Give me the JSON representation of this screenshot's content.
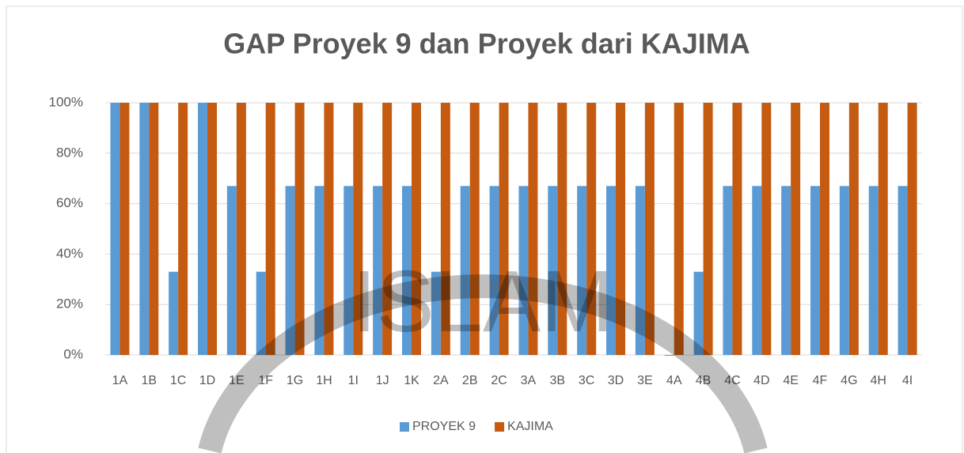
{
  "chart_data": {
    "type": "bar",
    "title": "GAP Proyek 9 dan Proyek dari KAJIMA",
    "categories": [
      "1A",
      "1B",
      "1C",
      "1D",
      "1E",
      "1F",
      "1G",
      "1H",
      "1I",
      "1J",
      "1K",
      "2A",
      "2B",
      "2C",
      "3A",
      "3B",
      "3C",
      "3D",
      "3E",
      "4A",
      "4B",
      "4C",
      "4D",
      "4E",
      "4F",
      "4G",
      "4H",
      "4I"
    ],
    "series": [
      {
        "name": "PROYEK 9",
        "color": "#5b9bd5",
        "values": [
          100,
          100,
          33,
          100,
          67,
          33,
          67,
          67,
          67,
          67,
          67,
          33,
          67,
          67,
          67,
          67,
          67,
          67,
          67,
          0,
          33,
          67,
          67,
          67,
          67,
          67,
          67,
          67
        ]
      },
      {
        "name": "KAJIMA",
        "color": "#c55a11",
        "values": [
          100,
          100,
          100,
          100,
          100,
          100,
          100,
          100,
          100,
          100,
          100,
          100,
          100,
          100,
          100,
          100,
          100,
          100,
          100,
          100,
          100,
          100,
          100,
          100,
          100,
          100,
          100,
          100
        ]
      }
    ],
    "ylim": [
      0,
      100
    ],
    "yticks": [
      {
        "value": 0,
        "label": "0%"
      },
      {
        "value": 20,
        "label": "20%"
      },
      {
        "value": 40,
        "label": "40%"
      },
      {
        "value": 60,
        "label": "60%"
      },
      {
        "value": 80,
        "label": "80%"
      },
      {
        "value": 100,
        "label": "100%"
      }
    ],
    "grid": true,
    "legend": "bottom",
    "watermark": "ISLAM"
  }
}
